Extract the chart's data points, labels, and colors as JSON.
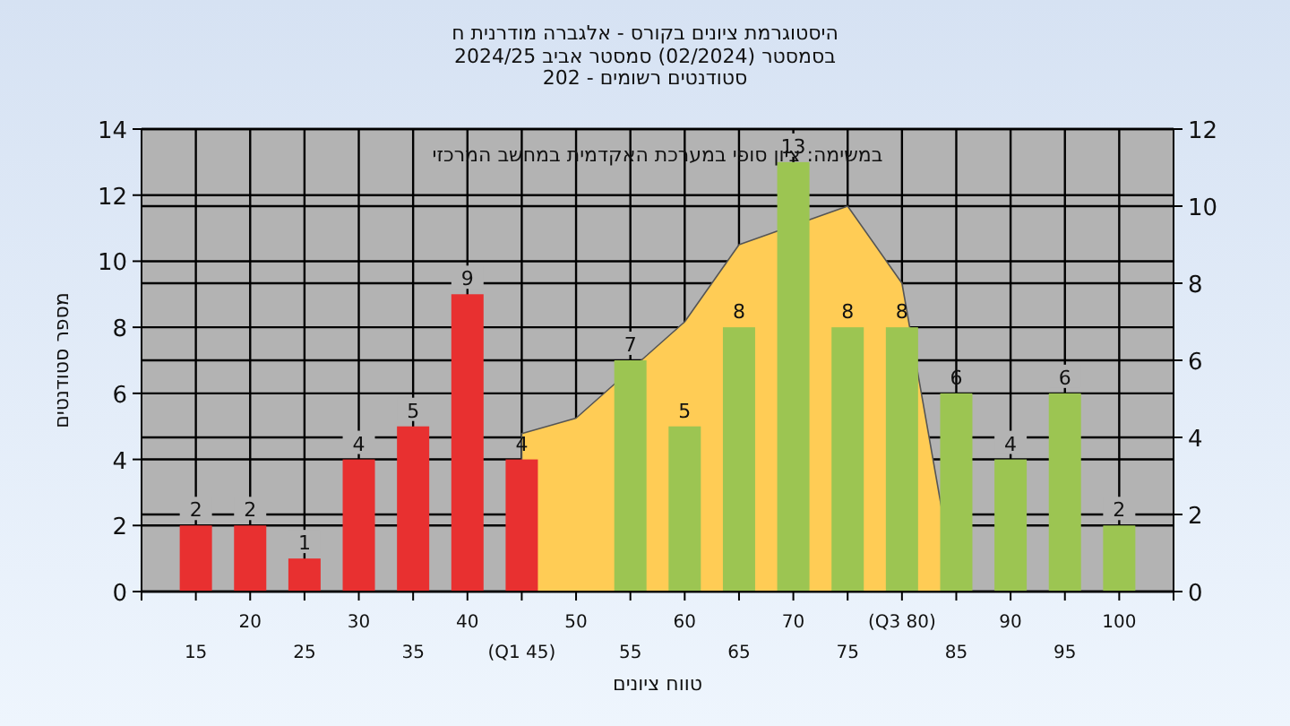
{
  "chart_data": {
    "type": "bar",
    "title": "היסטוגרמת ציונים בקורס - אלגברה מודרנית ח",
    "subtitle": [
      "בסמסטר  (02/2024)  סמסטר אביב 2024/25",
      "סטודנטים רשומים - 202"
    ],
    "xlabel": "טווח ציונים",
    "ylabel": "מספר סטודנטים",
    "annotations": [
      "במשימה: ציון סופי במערכת האקדמית במחשב המרכזי"
    ],
    "categories": [
      "15",
      "20",
      "25",
      "30",
      "35",
      "40",
      "(Q1 45)",
      "50",
      "55",
      "60",
      "65",
      "70",
      "75",
      "(Q3 80)",
      "85",
      "90",
      "95",
      "100"
    ],
    "series": [
      {
        "type": "area",
        "axis": "y2",
        "color": "#ffcc55",
        "values": [
          null,
          null,
          null,
          null,
          null,
          null,
          4.1,
          4.5,
          null,
          7,
          9,
          null,
          10,
          8,
          0,
          null,
          null,
          null
        ]
      },
      {
        "value_labels": [
          "2",
          "2",
          "1",
          "4",
          "5",
          "9",
          "4",
          null,
          "7",
          "5",
          "8",
          "13",
          "8",
          "8",
          "6",
          "4",
          "6",
          "2"
        ],
        "colors": [
          "#e83030",
          "#e83030",
          "#e83030",
          "#e83030",
          "#e83030",
          "#e83030",
          "#e83030",
          "#9cc552",
          "#9cc552",
          "#9cc552",
          "#9cc552",
          "#9cc552",
          "#9cc552",
          "#9cc552",
          "#9cc552",
          "#9cc552",
          "#9cc552",
          "#9cc552"
        ],
        "values": [
          2,
          2,
          1,
          4,
          5,
          9,
          4,
          null,
          7,
          5,
          8,
          13,
          8,
          8,
          6,
          4,
          6,
          2
        ]
      }
    ],
    "ylim": [
      0,
      14
    ],
    "yticks": [
      0,
      2,
      4,
      6,
      8,
      10,
      12,
      14
    ],
    "y2lim": [
      0,
      12
    ],
    "y2ticks": [
      0,
      2,
      4,
      6,
      8,
      10,
      12
    ],
    "grid": true
  }
}
